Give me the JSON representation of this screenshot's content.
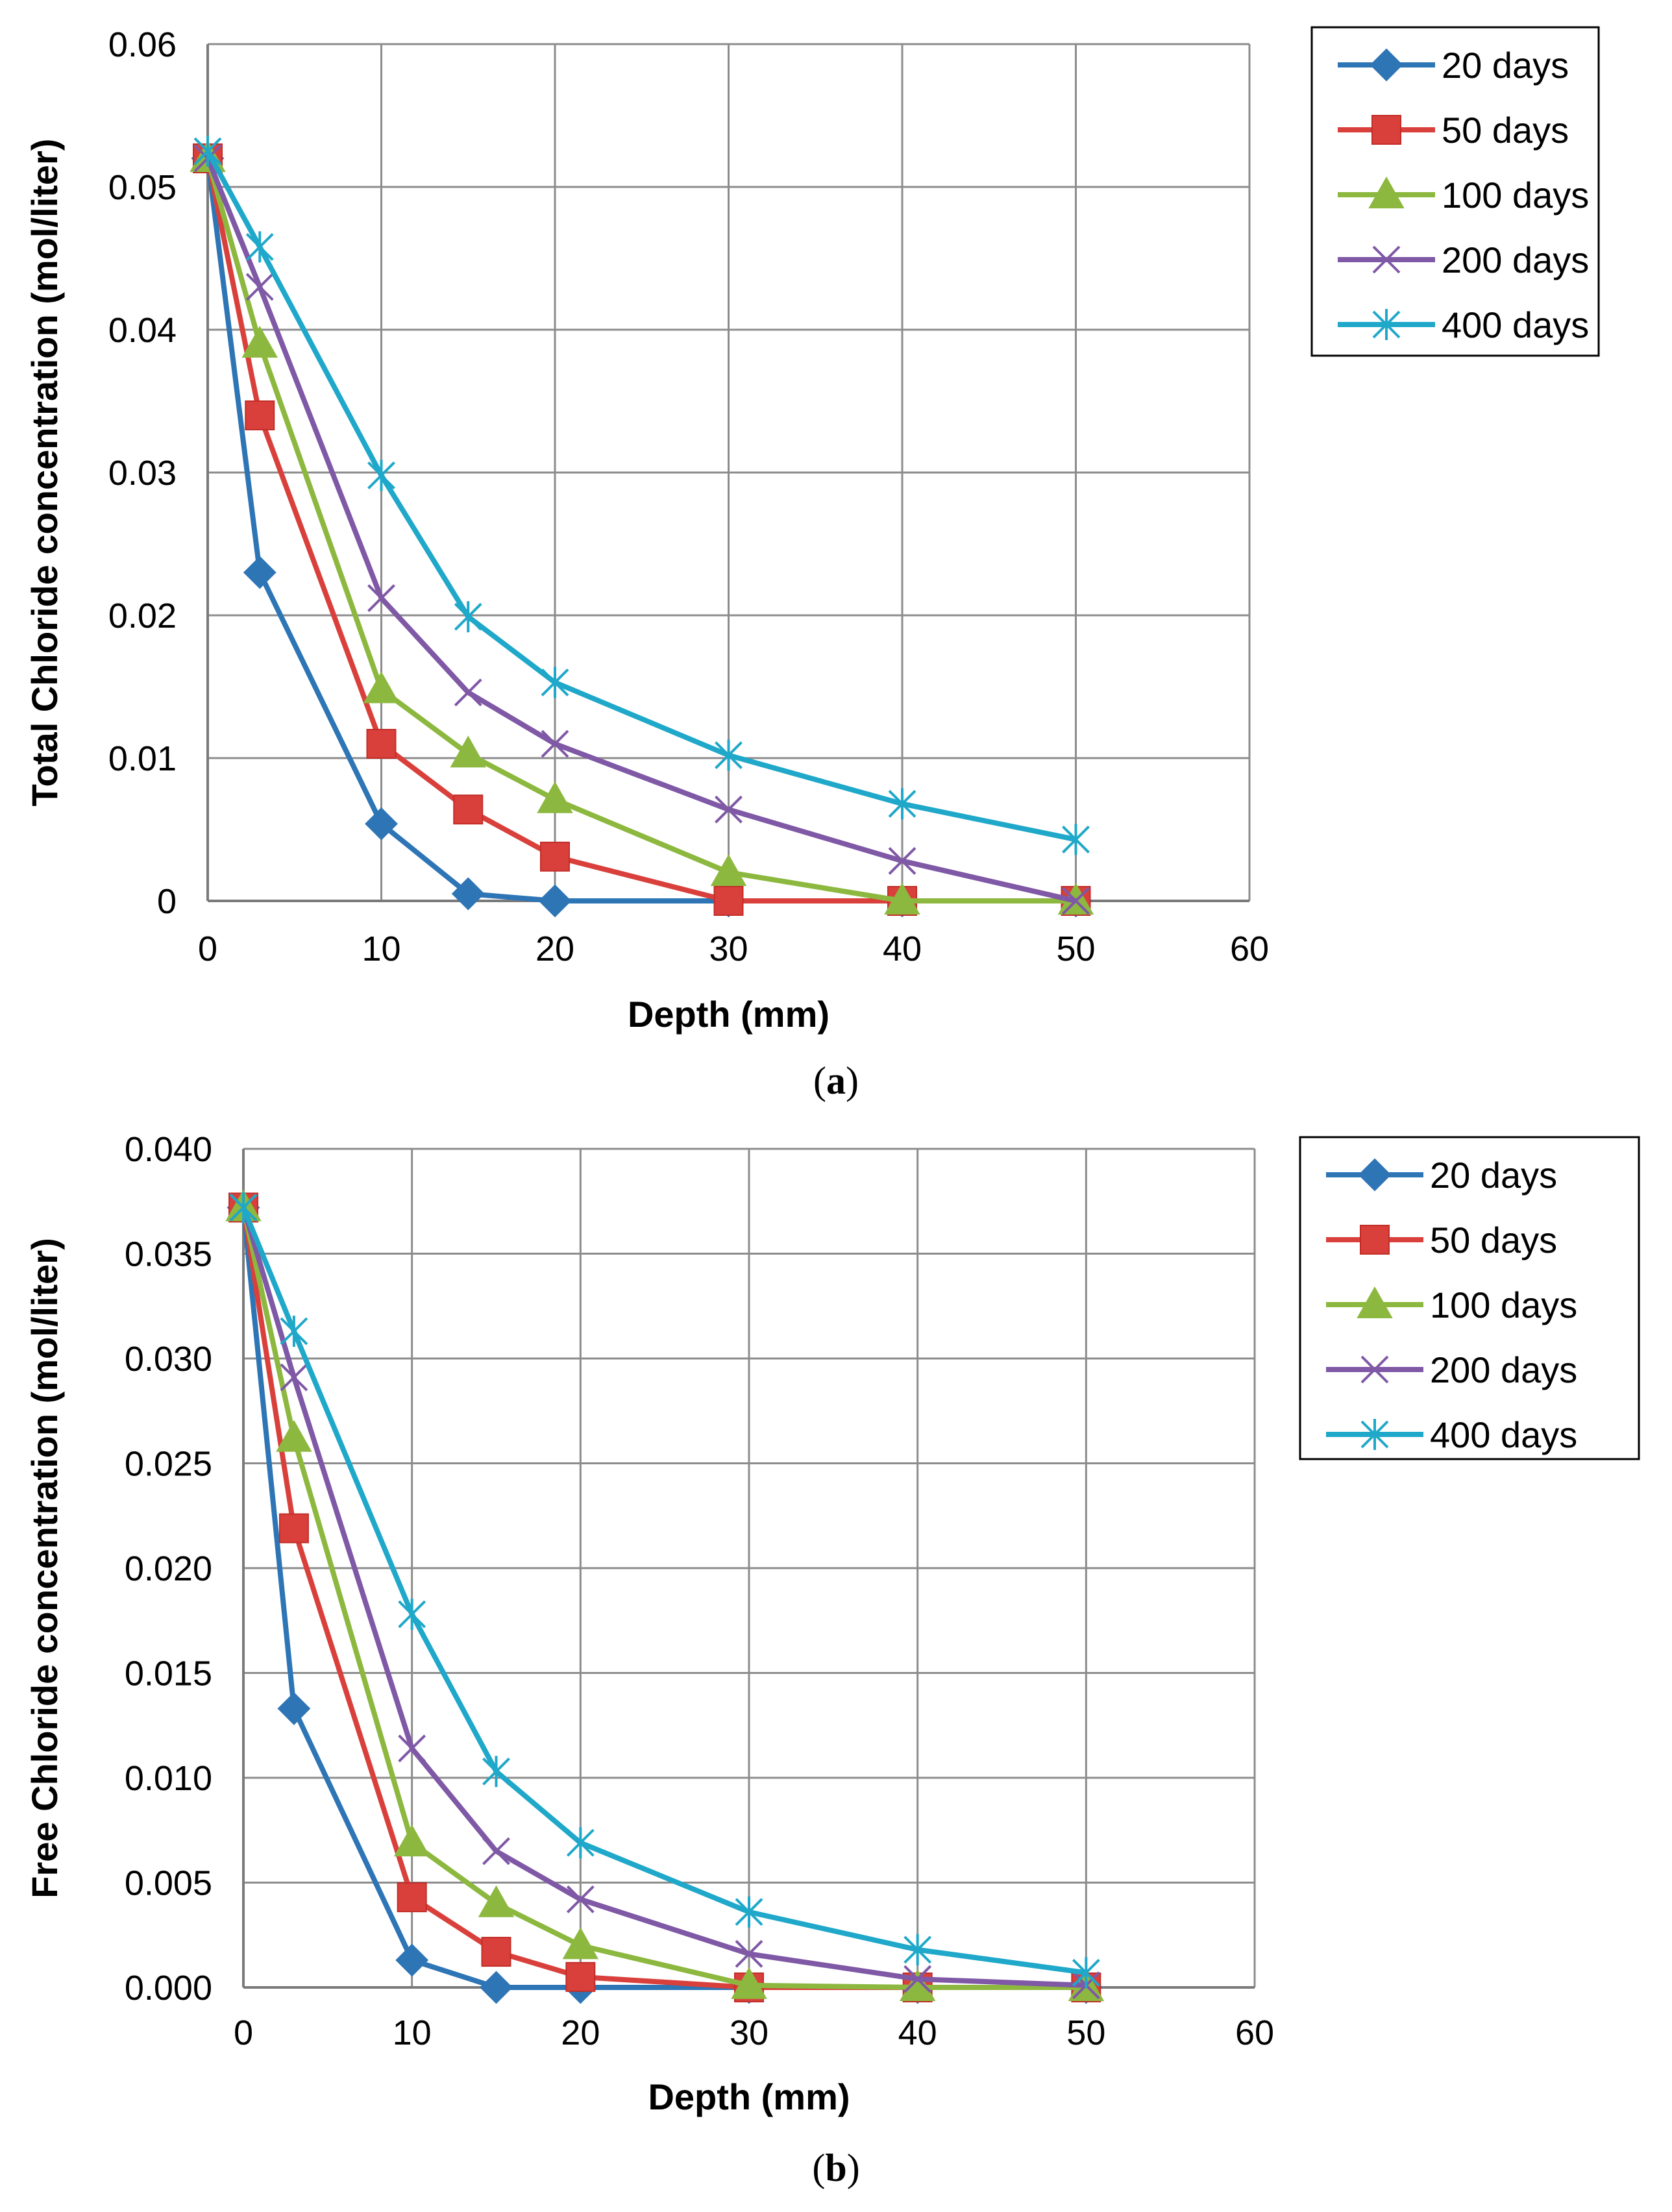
{
  "chart_data": [
    {
      "type": "line",
      "panel": "(a)",
      "caption_letter": "a",
      "title": "",
      "xlabel": "Depth (mm)",
      "ylabel": "Total Chloride concentration (mol/liter)",
      "xlim": [
        0,
        60
      ],
      "ylim": [
        0,
        0.06
      ],
      "x_ticks": [
        "0",
        "10",
        "20",
        "30",
        "40",
        "50",
        "60"
      ],
      "y_ticks": [
        "0",
        "0.01",
        "0.02",
        "0.03",
        "0.04",
        "0.05",
        "0.06"
      ],
      "grid": true,
      "legend_position": "right",
      "series": [
        {
          "name": "20 days",
          "color": "#2E75B6",
          "marker": "diamond",
          "x": [
            0,
            3,
            10,
            15,
            20,
            30,
            40,
            50
          ],
          "y": [
            0.052,
            0.023,
            0.0054,
            0.0005,
            0.0,
            0.0,
            0.0,
            0.0
          ]
        },
        {
          "name": "50 days",
          "color": "#D9403B",
          "marker": "square",
          "x": [
            0,
            3,
            10,
            15,
            20,
            30,
            40,
            50
          ],
          "y": [
            0.052,
            0.034,
            0.011,
            0.0064,
            0.0031,
            0.0,
            0.0,
            0.0
          ]
        },
        {
          "name": "100 days",
          "color": "#8DB83F",
          "marker": "triangle",
          "x": [
            0,
            3,
            10,
            15,
            20,
            30,
            40,
            50
          ],
          "y": [
            0.052,
            0.039,
            0.0148,
            0.0103,
            0.0071,
            0.002,
            0.0,
            0.0
          ]
        },
        {
          "name": "200 days",
          "color": "#7F58A6",
          "marker": "x",
          "x": [
            0,
            3,
            10,
            15,
            20,
            30,
            40,
            50
          ],
          "y": [
            0.052,
            0.043,
            0.0212,
            0.0146,
            0.011,
            0.0064,
            0.0028,
            0.0
          ]
        },
        {
          "name": "400 days",
          "color": "#1FA8C9",
          "marker": "star",
          "x": [
            0,
            3,
            10,
            15,
            20,
            30,
            40,
            50
          ],
          "y": [
            0.0525,
            0.0458,
            0.0298,
            0.0199,
            0.0153,
            0.0102,
            0.0068,
            0.0043
          ]
        }
      ]
    },
    {
      "type": "line",
      "panel": "(b)",
      "caption_letter": "b",
      "title": "",
      "xlabel": "Depth (mm)",
      "ylabel": "Free Chloride concentration (mol/liter)",
      "xlim": [
        0,
        60
      ],
      "ylim": [
        0,
        0.04
      ],
      "x_ticks": [
        "0",
        "10",
        "20",
        "30",
        "40",
        "50",
        "60"
      ],
      "y_ticks": [
        "0.000",
        "0.005",
        "0.010",
        "0.015",
        "0.020",
        "0.025",
        "0.030",
        "0.035",
        "0.040"
      ],
      "grid": true,
      "legend_position": "right",
      "series": [
        {
          "name": "20 days",
          "color": "#2E75B6",
          "marker": "diamond",
          "x": [
            0,
            3,
            10,
            15,
            20,
            30,
            40,
            50
          ],
          "y": [
            0.0372,
            0.0133,
            0.0013,
            0.0,
            0.0,
            0.0,
            0.0,
            0.0
          ]
        },
        {
          "name": "50 days",
          "color": "#D9403B",
          "marker": "square",
          "x": [
            0,
            3,
            10,
            15,
            20,
            30,
            40,
            50
          ],
          "y": [
            0.0372,
            0.0219,
            0.0043,
            0.0017,
            0.0005,
            0.0,
            0.0,
            0.0
          ]
        },
        {
          "name": "100 days",
          "color": "#8DB83F",
          "marker": "triangle",
          "x": [
            0,
            3,
            10,
            15,
            20,
            30,
            40,
            50
          ],
          "y": [
            0.0372,
            0.0262,
            0.0069,
            0.004,
            0.002,
            0.0001,
            0.0,
            0.0
          ]
        },
        {
          "name": "200 days",
          "color": "#7F58A6",
          "marker": "x",
          "x": [
            0,
            3,
            10,
            15,
            20,
            30,
            40,
            50
          ],
          "y": [
            0.0372,
            0.0291,
            0.0114,
            0.0065,
            0.0042,
            0.0016,
            0.0004,
            0.0001
          ]
        },
        {
          "name": "400 days",
          "color": "#1FA8C9",
          "marker": "star",
          "x": [
            0,
            3,
            10,
            15,
            20,
            30,
            40,
            50
          ],
          "y": [
            0.0372,
            0.0313,
            0.0178,
            0.0103,
            0.0069,
            0.0036,
            0.0018,
            0.0007
          ]
        }
      ]
    }
  ]
}
